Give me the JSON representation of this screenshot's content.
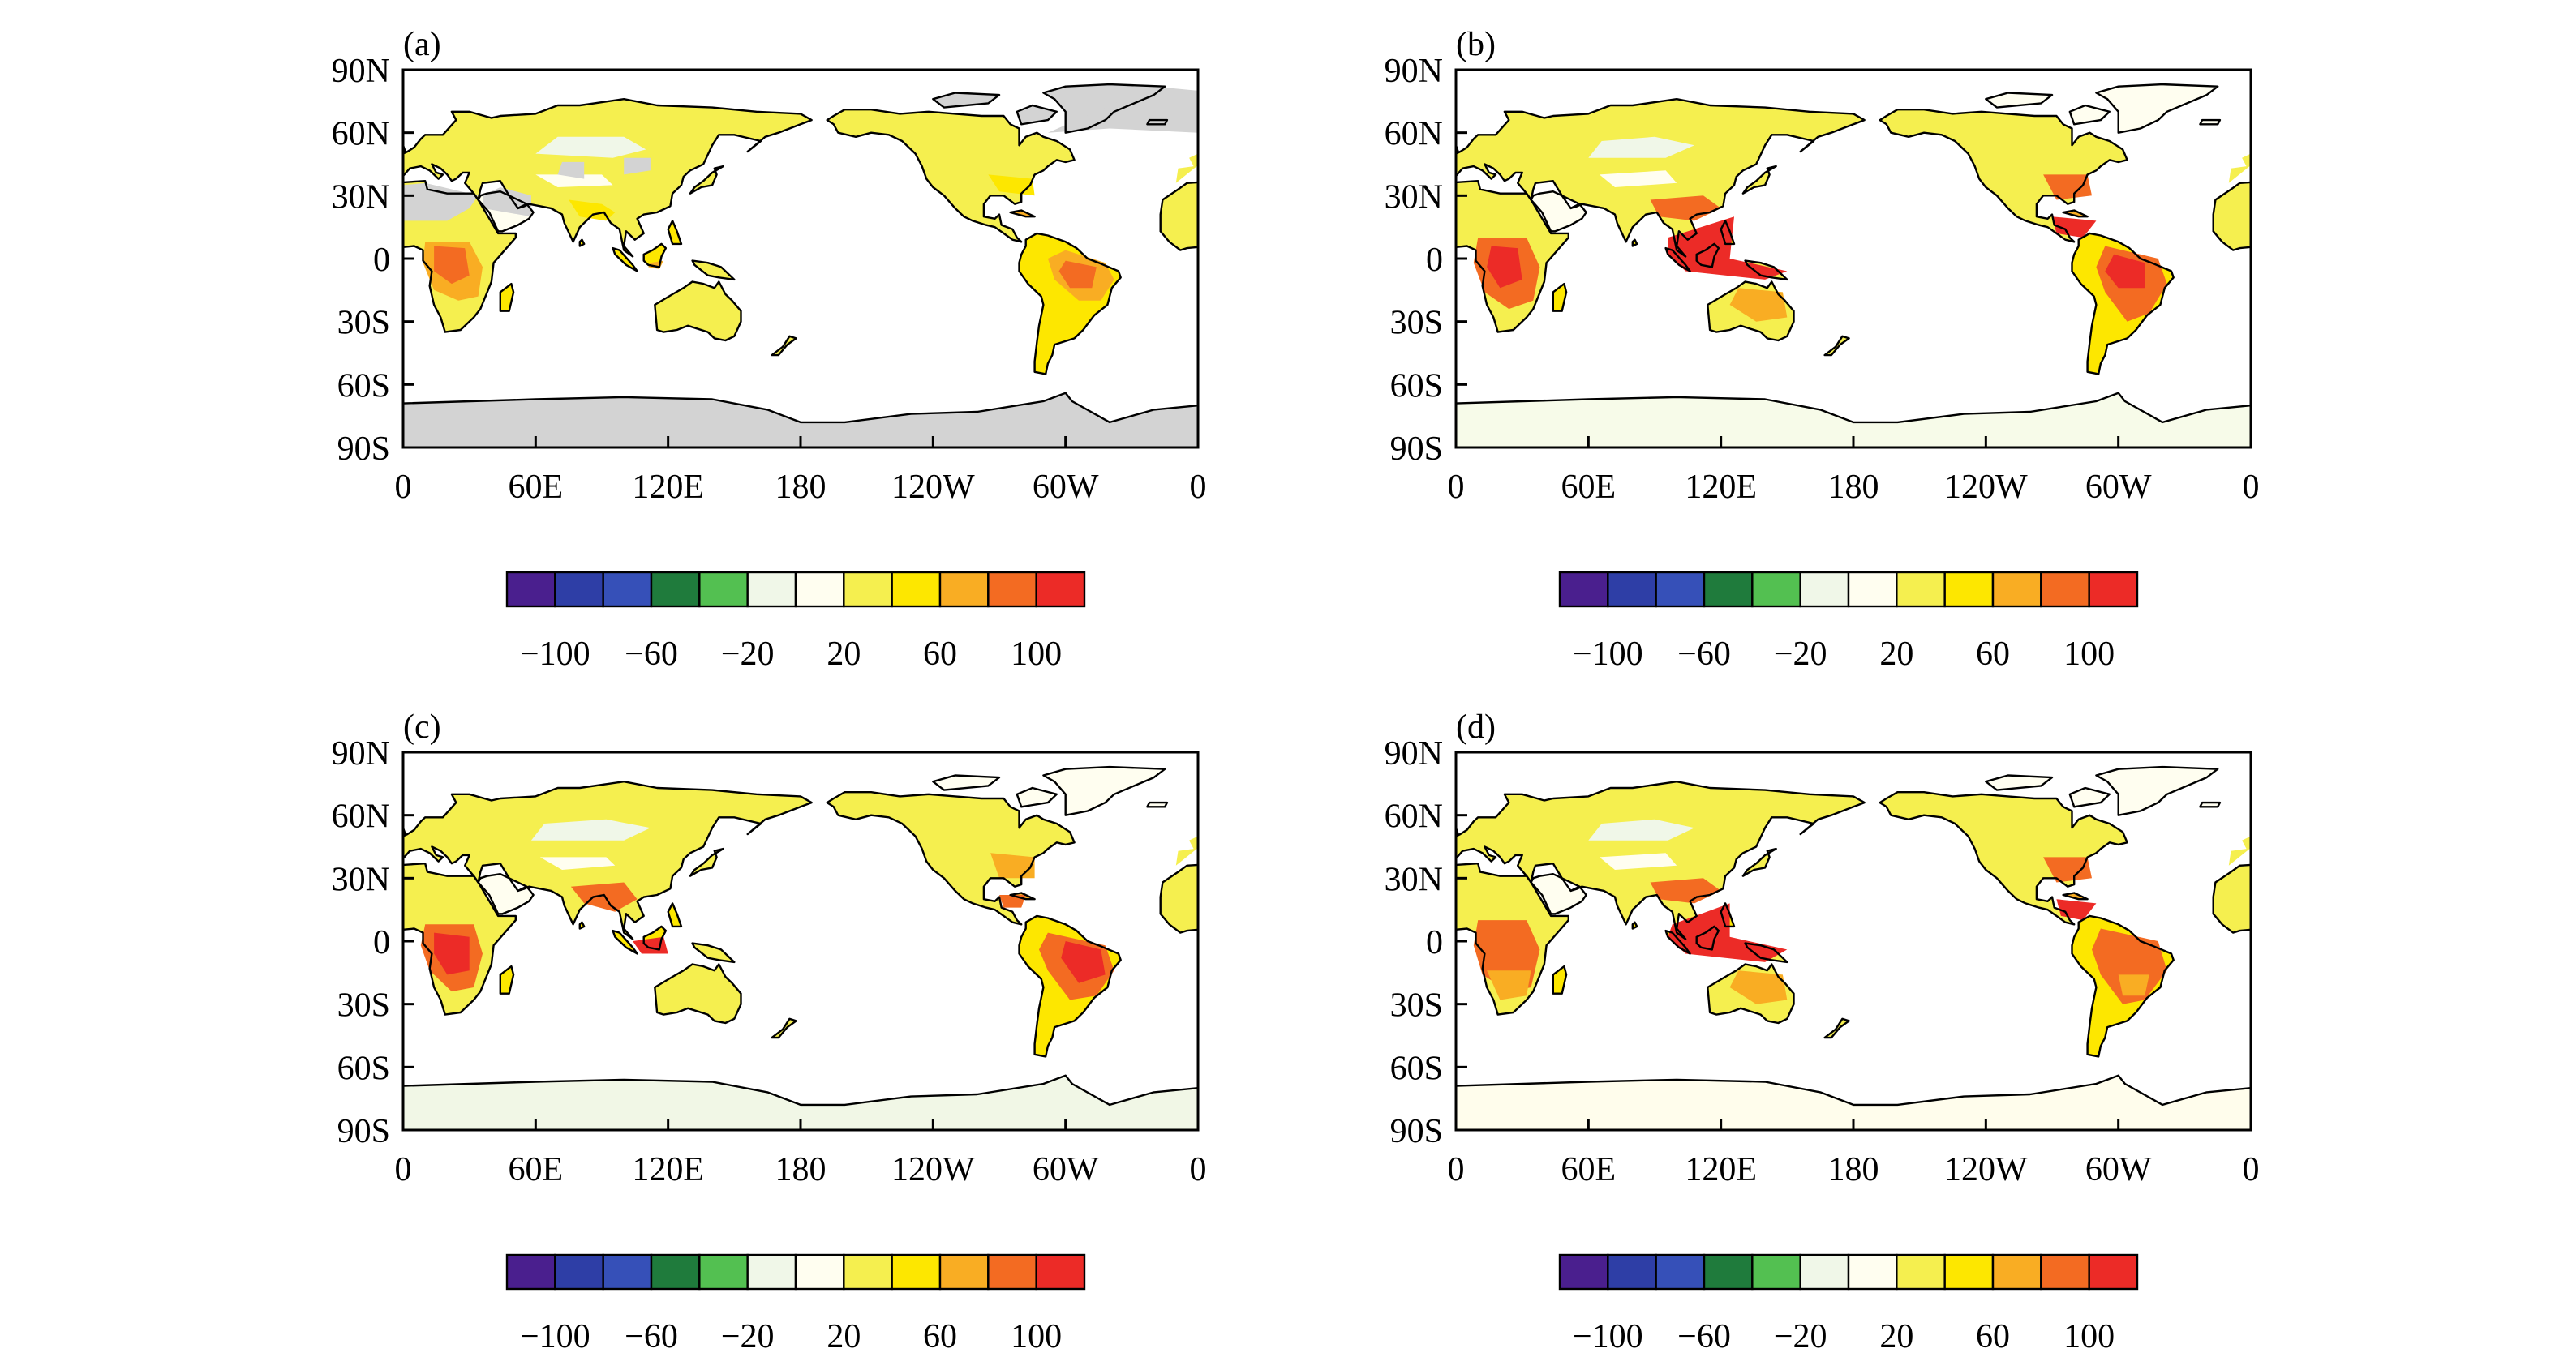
{
  "figure": {
    "description_free": true,
    "lat_ticks": [
      "90N",
      "60N",
      "30N",
      "0",
      "30S",
      "60S",
      "90S"
    ],
    "lon_ticks": [
      "0",
      "60E",
      "120E",
      "180",
      "120W",
      "60W",
      "0"
    ],
    "colorbar": {
      "colors": [
        "#4a1f8e",
        "#2e3ea6",
        "#3650b8",
        "#1f7b3c",
        "#53c051",
        "#f0f7e8",
        "#fffef0",
        "#f5ef4f",
        "#fde700",
        "#f9ad23",
        "#f36b22",
        "#ec2b27"
      ],
      "tick_labels": [
        "−100",
        "−60",
        "−20",
        "20",
        "60",
        "100"
      ]
    },
    "panels": [
      {
        "label": "(a)",
        "variant": "a",
        "antarctica_fill": "#d3d3d3",
        "background_land": "#d3d3d3"
      },
      {
        "label": "(b)",
        "variant": "b",
        "antarctica_fill": "#f7fbe9",
        "background_land": "#fffef0"
      },
      {
        "label": "(c)",
        "variant": "c",
        "antarctica_fill": "#f1f7e6",
        "background_land": "#fffef0"
      },
      {
        "label": "(d)",
        "variant": "d",
        "antarctica_fill": "#fffdec",
        "background_land": "#fffef0"
      }
    ]
  }
}
